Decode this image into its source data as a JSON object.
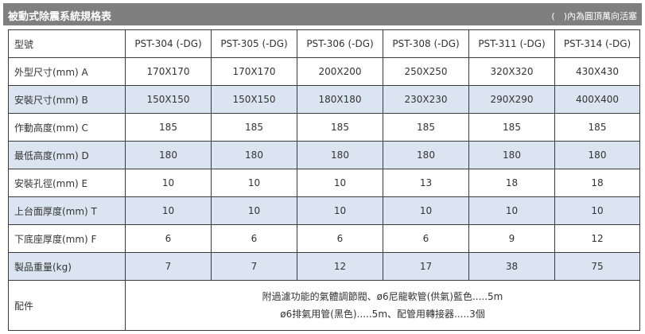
{
  "title": "被動式除震系統規格表",
  "note": "(　)內為圓頂萬向活塞",
  "table": {
    "header": {
      "label": "型號",
      "models": [
        "PST-304 (-DG)",
        "PST-305 (-DG)",
        "PST-306 (-DG)",
        "PST-308 (-DG)",
        "PST-311 (-DG)",
        "PST-314 (-DG)"
      ]
    },
    "rows": [
      {
        "label": "外型尺寸(mm) A",
        "values": [
          "170X170",
          "170X170",
          "200X200",
          "250X250",
          "320X320",
          "430X430"
        ]
      },
      {
        "label": "安裝尺寸(mm) B",
        "values": [
          "150X150",
          "150X150",
          "180X180",
          "230X230",
          "290X290",
          "400X400"
        ]
      },
      {
        "label": "作動高度(mm) C",
        "values": [
          "185",
          "185",
          "185",
          "185",
          "185",
          "185"
        ]
      },
      {
        "label": "最低高度(mm) D",
        "values": [
          "180",
          "180",
          "180",
          "180",
          "180",
          "180"
        ]
      },
      {
        "label": "安裝孔徑(mm) E",
        "values": [
          "10",
          "10",
          "10",
          "13",
          "18",
          "18"
        ]
      },
      {
        "label": "上台面厚度(mm) T",
        "values": [
          "10",
          "10",
          "10",
          "10",
          "10",
          "10"
        ]
      },
      {
        "label": "下底座厚度(mm) F",
        "values": [
          "6",
          "6",
          "6",
          "6",
          "9",
          "12"
        ]
      },
      {
        "label": "製品重量(kg)",
        "values": [
          "7",
          "7",
          "12",
          "17",
          "38",
          "75"
        ]
      }
    ],
    "accessories": {
      "label": "配件",
      "lines": [
        "附過濾功能的氣體調節閥、ø6尼龍軟管(供氣)藍色.....5m",
        "ø6排氣用管(黑色).....5m、配管用轉接器.....3個"
      ]
    }
  }
}
